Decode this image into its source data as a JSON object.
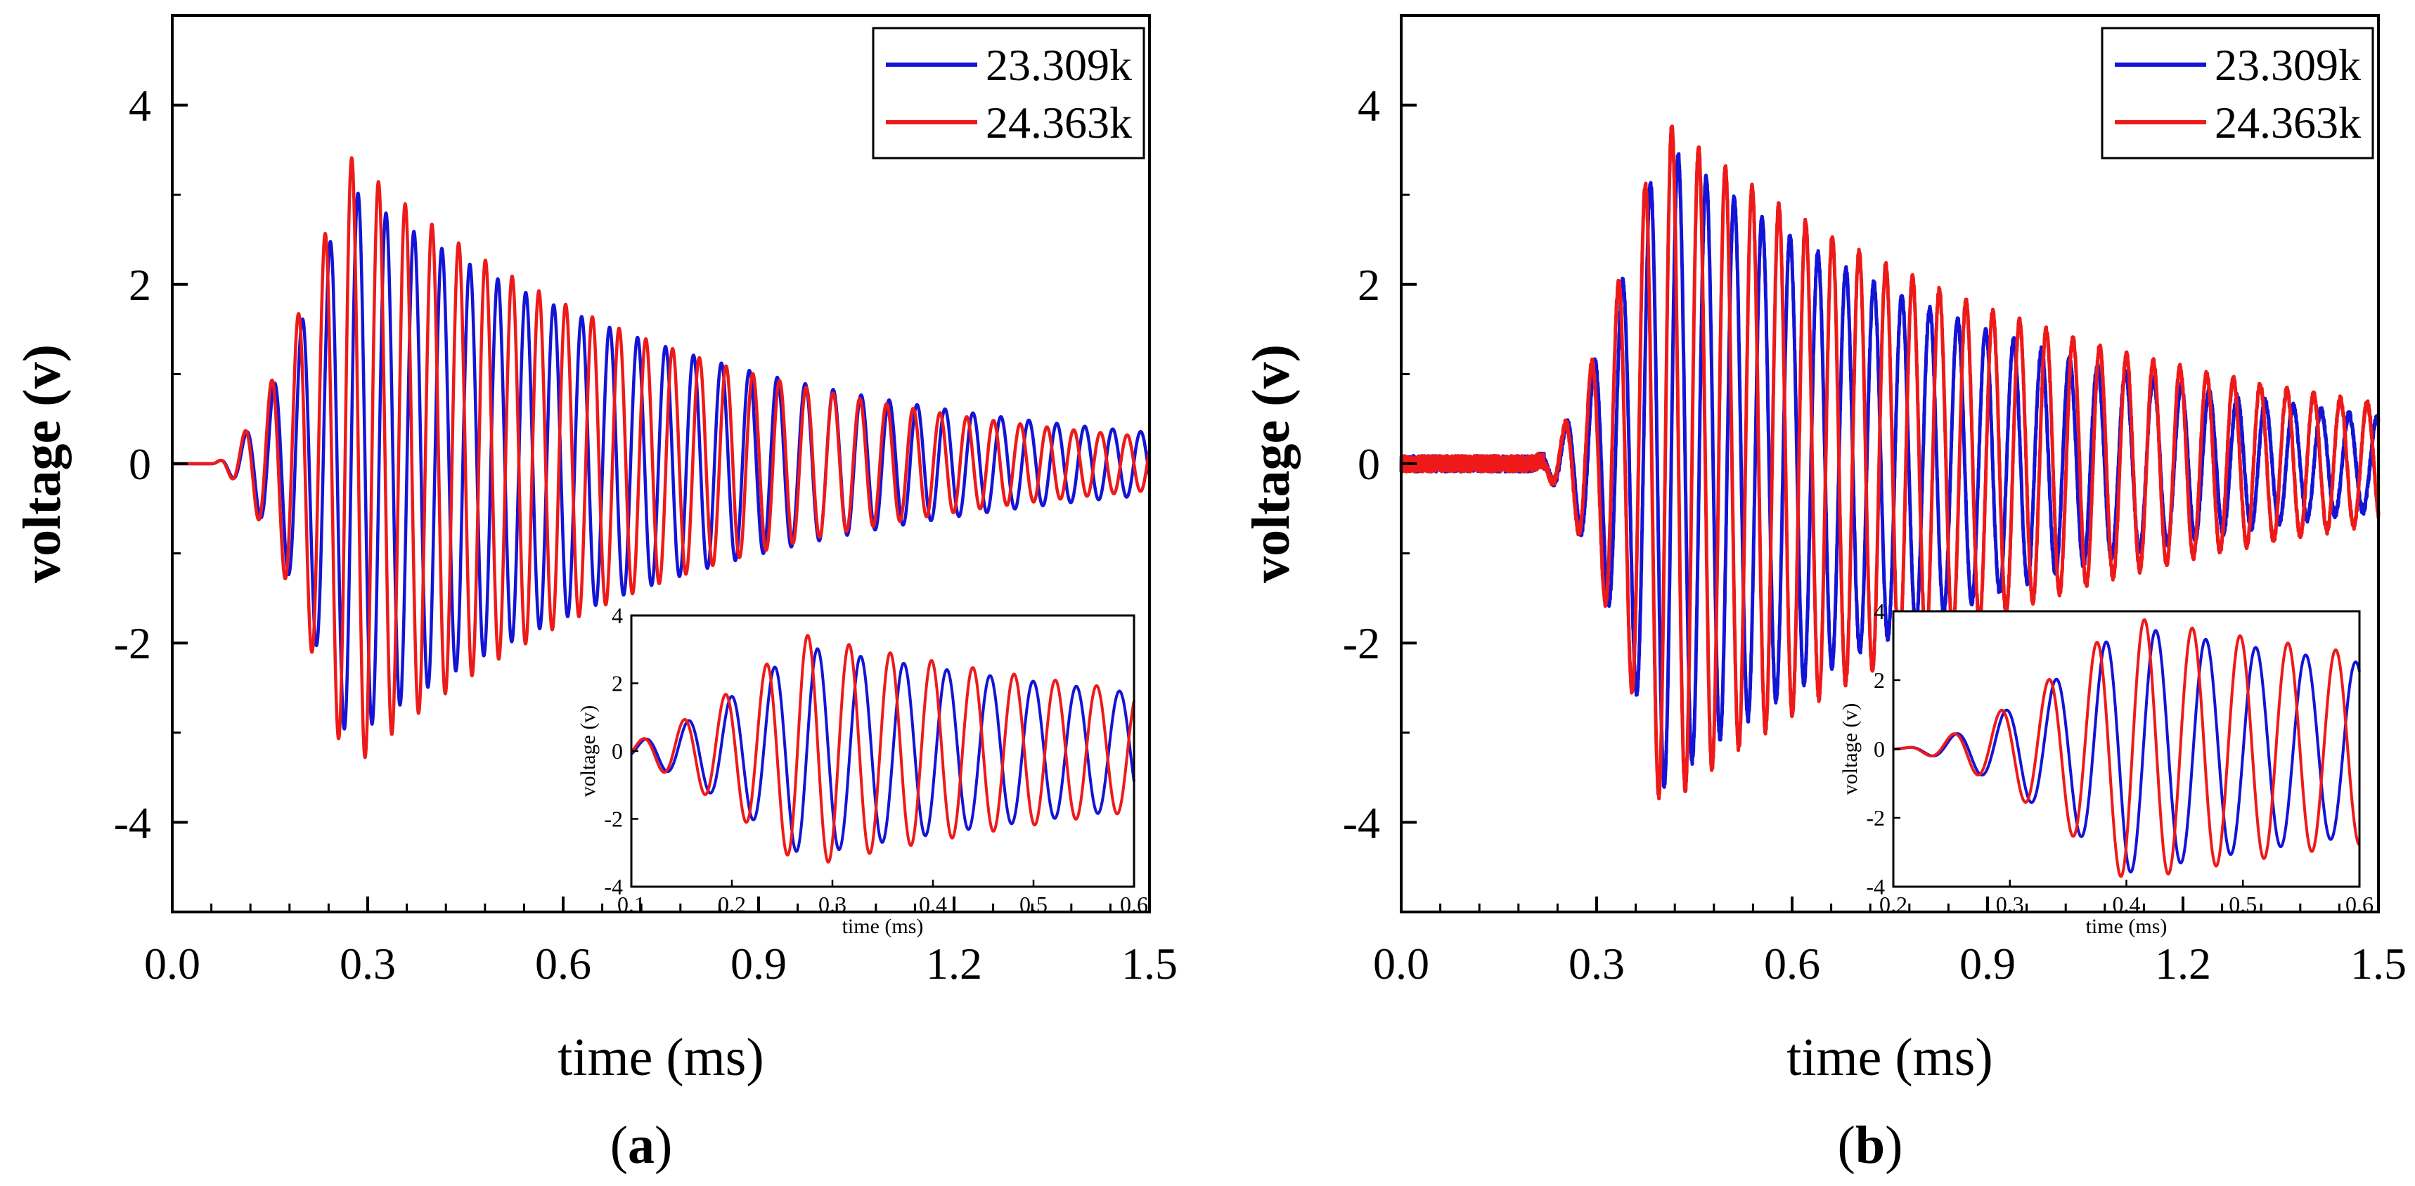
{
  "colors": {
    "blue": "#1414d6",
    "red": "#ee1a1a"
  },
  "legend": [
    "23.309k",
    "24.363k"
  ],
  "chart_data": [
    {
      "panel_label": "a",
      "type": "line",
      "xlabel": "time (ms)",
      "ylabel": "voltage (v)",
      "xlim": [
        0,
        1.5
      ],
      "ylim": [
        -5,
        5
      ],
      "xticks": [
        "0.0",
        "0.3",
        "0.6",
        "0.9",
        "1.2",
        "1.5"
      ],
      "yticks": [
        "-4",
        "-2",
        "0",
        "2",
        "4"
      ],
      "legend_position": "top-right",
      "series": [
        {
          "name": "23.309k",
          "color": "blue",
          "start_ms": 0.06,
          "freq_khz": 23.309,
          "peak_v": 3.1,
          "peak_ms": 0.27,
          "end_v": 0.35,
          "rise_ms": 0.1,
          "noise_v": 0
        },
        {
          "name": "24.363k",
          "color": "red",
          "start_ms": 0.06,
          "freq_khz": 24.363,
          "peak_v": 3.45,
          "peak_ms": 0.27,
          "end_v": 0.3,
          "rise_ms": 0.1,
          "noise_v": 0
        }
      ],
      "inset": {
        "xlabel": "time (ms)",
        "ylabel": "voltage (v)",
        "xlim": [
          0.1,
          0.6
        ],
        "ylim": [
          -4,
          4
        ],
        "xticks": [
          "0.1",
          "0.2",
          "0.3",
          "0.4",
          "0.5",
          "0.6"
        ],
        "yticks": [
          "-4",
          "-2",
          "0",
          "2",
          "4"
        ],
        "legend_position": "bottom-right"
      }
    },
    {
      "panel_label": "b",
      "type": "line",
      "xlabel": "time (ms)",
      "ylabel": "voltage (v)",
      "xlim": [
        0,
        1.5
      ],
      "ylim": [
        -5,
        5
      ],
      "xticks": [
        "0.0",
        "0.3",
        "0.6",
        "0.9",
        "1.2",
        "1.5"
      ],
      "yticks": [
        "-4",
        "-2",
        "0",
        "2",
        "4"
      ],
      "legend_position": "top-right",
      "series": [
        {
          "name": "23.309k",
          "color": "blue",
          "start_ms": 0.2,
          "freq_khz": 23.309,
          "peak_v": 3.6,
          "peak_ms": 0.4,
          "end_v": 0.5,
          "rise_ms": 0.13,
          "noise_v": 0.15
        },
        {
          "name": "24.363k",
          "color": "red",
          "start_ms": 0.2,
          "freq_khz": 24.363,
          "peak_v": 3.85,
          "peak_ms": 0.4,
          "end_v": 0.65,
          "rise_ms": 0.13,
          "noise_v": 0.15
        }
      ],
      "inset": {
        "xlabel": "time (ms)",
        "ylabel": "voltage (v)",
        "xlim": [
          0.2,
          0.6
        ],
        "ylim": [
          -4,
          4
        ],
        "xticks": [
          "0.2",
          "0.3",
          "0.4",
          "0.5",
          "0.6"
        ],
        "yticks": [
          "-4",
          "-2",
          "0",
          "2",
          "4"
        ],
        "legend_position": "bottom-right"
      }
    }
  ]
}
